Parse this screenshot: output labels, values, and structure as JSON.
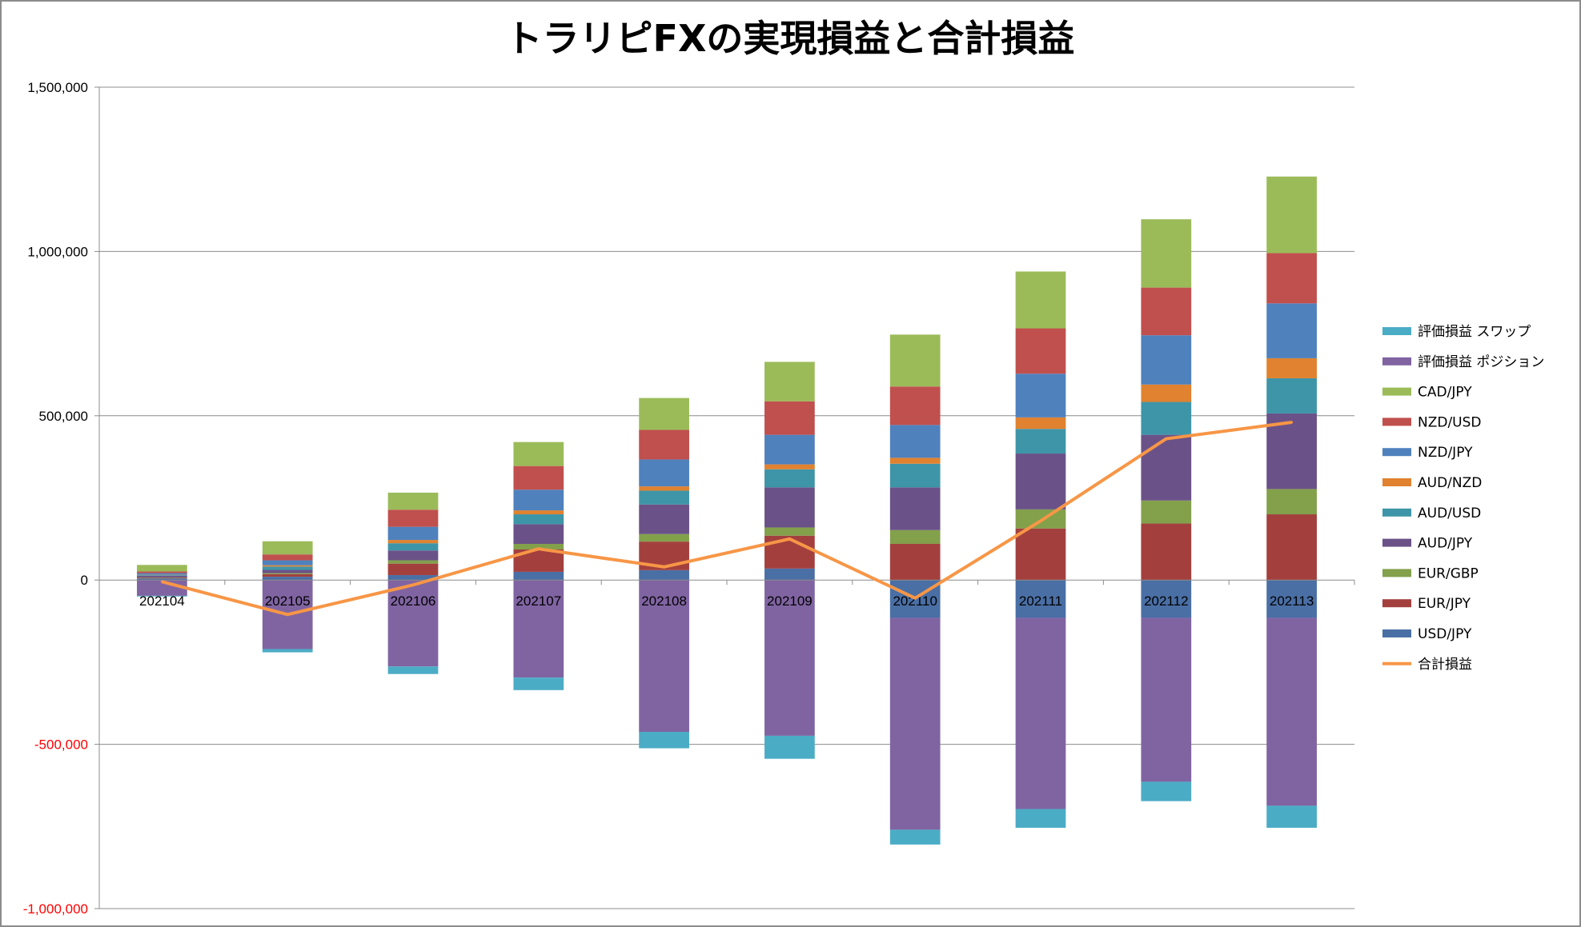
{
  "chart_data": {
    "type": "bar",
    "stacked": true,
    "title": "トラリピFXの実現損益と合計損益",
    "xlabel": "",
    "ylabel": "",
    "ylim": [
      -1000000,
      1500000
    ],
    "y_ticks": [
      {
        "value": 1500000,
        "label": "1,500,000"
      },
      {
        "value": 1000000,
        "label": "1,000,000"
      },
      {
        "value": 500000,
        "label": "500,000"
      },
      {
        "value": 0,
        "label": "0"
      },
      {
        "value": -500000,
        "label": "-500,000"
      },
      {
        "value": -1000000,
        "label": "-1,000,000"
      }
    ],
    "negative_tick_color": "#ff0000",
    "grid": "horizontal",
    "legend_position": "right",
    "categories": [
      "202104",
      "202105",
      "202106",
      "202107",
      "202108",
      "202109",
      "202110",
      "202111",
      "202112",
      "202113"
    ],
    "series": [
      {
        "name": "USD/JPY",
        "kind": "bar",
        "color": "#4a6fa5",
        "values": [
          5000,
          10000,
          15000,
          25000,
          30000,
          35000,
          -115000,
          -115000,
          -115000,
          -115000
        ]
      },
      {
        "name": "EUR/JPY",
        "kind": "bar",
        "color": "#a3403e",
        "values": [
          2000,
          8000,
          35000,
          68000,
          87000,
          100000,
          110000,
          157000,
          172000,
          200000
        ]
      },
      {
        "name": "EUR/GBP",
        "kind": "bar",
        "color": "#83a04b",
        "values": [
          1000,
          3000,
          10000,
          17000,
          23000,
          25000,
          42000,
          58000,
          70000,
          77000
        ]
      },
      {
        "name": "AUD/JPY",
        "kind": "bar",
        "color": "#6a5288",
        "values": [
          5000,
          10000,
          30000,
          60000,
          90000,
          122000,
          130000,
          170000,
          200000,
          230000
        ]
      },
      {
        "name": "AUD/USD",
        "kind": "bar",
        "color": "#3e95a8",
        "values": [
          2000,
          10000,
          22000,
          30000,
          42000,
          55000,
          72000,
          75000,
          100000,
          107000
        ]
      },
      {
        "name": "AUD/NZD",
        "kind": "bar",
        "color": "#e0822f",
        "values": [
          1000,
          4000,
          10000,
          12000,
          13000,
          15000,
          18000,
          35000,
          53000,
          61000
        ]
      },
      {
        "name": "NZD/JPY",
        "kind": "bar",
        "color": "#4f81bd",
        "values": [
          5000,
          15000,
          40000,
          63000,
          82000,
          90000,
          100000,
          133000,
          150000,
          167000
        ]
      },
      {
        "name": "NZD/USD",
        "kind": "bar",
        "color": "#c0504d",
        "values": [
          5000,
          18000,
          52000,
          72000,
          90000,
          102000,
          117000,
          138000,
          145000,
          153000
        ]
      },
      {
        "name": "CAD/JPY",
        "kind": "bar",
        "color": "#9bbb59",
        "values": [
          20000,
          40000,
          52000,
          73000,
          97000,
          120000,
          158000,
          173000,
          208000,
          233000
        ]
      },
      {
        "name": "評価損益 ポジション",
        "kind": "bar",
        "color": "#8064a2",
        "values": [
          -48000,
          -210000,
          -263000,
          -297000,
          -462000,
          -474000,
          -645000,
          -582000,
          -499000,
          -572000
        ]
      },
      {
        "name": "評価損益 スワップ",
        "kind": "bar",
        "color": "#4bacc6",
        "values": [
          -2000,
          -10000,
          -23000,
          -38000,
          -50000,
          -70000,
          -45000,
          -57000,
          -59000,
          -67000
        ]
      },
      {
        "name": "合計損益",
        "kind": "line",
        "color": "#f79646",
        "values": [
          -5000,
          -105000,
          -15000,
          95000,
          40000,
          125000,
          -55000,
          180000,
          430000,
          480000
        ]
      }
    ],
    "legend_order": [
      "評価損益 スワップ",
      "評価損益 ポジション",
      "CAD/JPY",
      "NZD/USD",
      "NZD/JPY",
      "AUD/NZD",
      "AUD/USD",
      "AUD/JPY",
      "EUR/GBP",
      "EUR/JPY",
      "USD/JPY",
      "合計損益"
    ]
  }
}
